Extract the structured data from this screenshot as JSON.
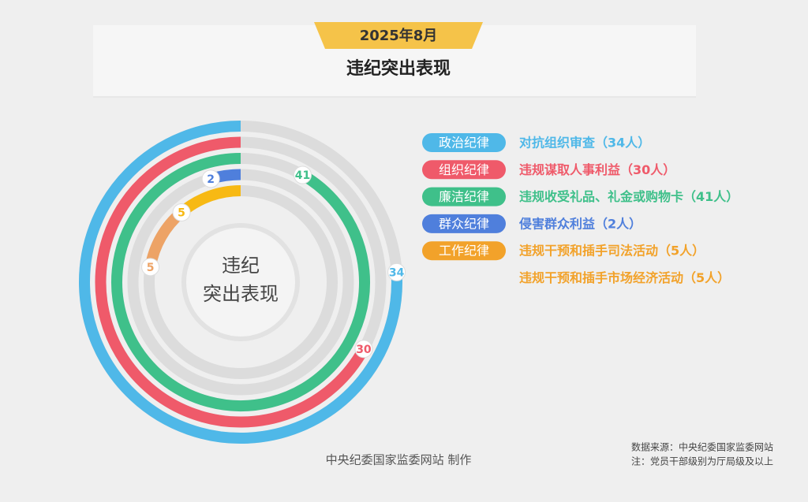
{
  "chart_data": {
    "type": "radialbar",
    "date": "2025年8月",
    "title": "违纪突出表现",
    "center_label": [
      "违纪",
      "突出表现"
    ],
    "series": [
      {
        "name": "政治纪律",
        "color": "#4fb8e8",
        "items": [
          {
            "label": "对抗组织审查（34人）",
            "value": 34
          }
        ]
      },
      {
        "name": "组织纪律",
        "color": "#ef5a6a",
        "items": [
          {
            "label": "违规谋取人事利益（30人）",
            "value": 30
          }
        ]
      },
      {
        "name": "廉洁纪律",
        "color": "#3fc08a",
        "items": [
          {
            "label": "违规收受礼品、礼金或购物卡（41人）",
            "value": 41
          }
        ]
      },
      {
        "name": "群众纪律",
        "color": "#4f7fdc",
        "items": [
          {
            "label": "侵害群众利益（2人）",
            "value": 2
          }
        ]
      },
      {
        "name": "工作纪律",
        "color": "#f2a22a",
        "items": [
          {
            "label": "违规干预和插手司法活动（5人）",
            "value": 5,
            "color": "#f7b914"
          },
          {
            "label": "违规干预和插手市场经济活动（5人）",
            "value": 5,
            "color": "#eda366"
          }
        ]
      }
    ],
    "credit": "中央纪委国家监委网站 制作",
    "source": "数据来源：中央纪委国家监委网站",
    "note": "注：党员干部级别为厅局级及以上"
  }
}
